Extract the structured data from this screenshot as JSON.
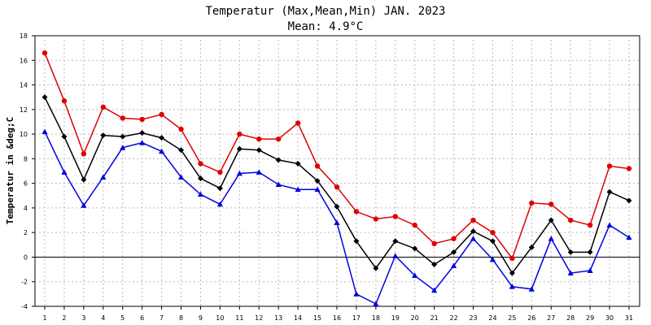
{
  "chart_data": {
    "type": "line",
    "title": "Temperatur (Max,Mean,Min) JAN. 2023",
    "subtitle": "Mean: 4.9°C",
    "ylabel": "Temperatur in &deg;C",
    "xlabel": "",
    "ylim": [
      -4,
      18
    ],
    "yticks": [
      -4,
      -2,
      0,
      2,
      4,
      6,
      8,
      10,
      12,
      14,
      16,
      18
    ],
    "x": [
      "1",
      "2",
      "3",
      "4",
      "5",
      "6",
      "7",
      "8",
      "9",
      "10",
      "11",
      "12",
      "13",
      "14",
      "15",
      "16",
      "17",
      "18",
      "19",
      "20",
      "21",
      "22",
      "23",
      "24",
      "25",
      "26",
      "27",
      "28",
      "29",
      "30",
      "31"
    ],
    "grid": true,
    "series": [
      {
        "color": "#e00000",
        "marker": "circle",
        "values": [
          16.6,
          12.7,
          8.4,
          12.2,
          11.3,
          11.2,
          11.6,
          10.4,
          7.6,
          6.9,
          10.0,
          9.6,
          9.6,
          10.9,
          7.4,
          5.7,
          3.7,
          3.1,
          3.3,
          2.6,
          1.1,
          1.5,
          3.0,
          2.0,
          -0.1,
          4.4,
          4.3,
          3.0,
          2.6,
          7.4,
          7.2
        ]
      },
      {
        "color": "#000000",
        "marker": "diamond",
        "values": [
          13.0,
          9.8,
          6.3,
          9.9,
          9.8,
          10.1,
          9.7,
          8.7,
          6.4,
          5.6,
          8.8,
          8.7,
          7.9,
          7.6,
          6.2,
          4.1,
          1.3,
          -0.9,
          1.3,
          0.7,
          -0.6,
          0.4,
          2.1,
          1.3,
          -1.3,
          0.8,
          3.0,
          0.4,
          0.4,
          5.3,
          4.6
        ]
      },
      {
        "color": "#0000e0",
        "marker": "triangle",
        "values": [
          10.2,
          6.9,
          4.2,
          6.5,
          8.9,
          9.3,
          8.6,
          6.5,
          5.1,
          4.3,
          6.8,
          6.9,
          5.9,
          5.5,
          5.5,
          2.8,
          -3.0,
          -3.8,
          0.1,
          -1.5,
          -2.7,
          -0.7,
          1.5,
          -0.2,
          -2.4,
          -2.6,
          1.5,
          -1.3,
          -1.1,
          2.6,
          1.6
        ]
      }
    ]
  }
}
